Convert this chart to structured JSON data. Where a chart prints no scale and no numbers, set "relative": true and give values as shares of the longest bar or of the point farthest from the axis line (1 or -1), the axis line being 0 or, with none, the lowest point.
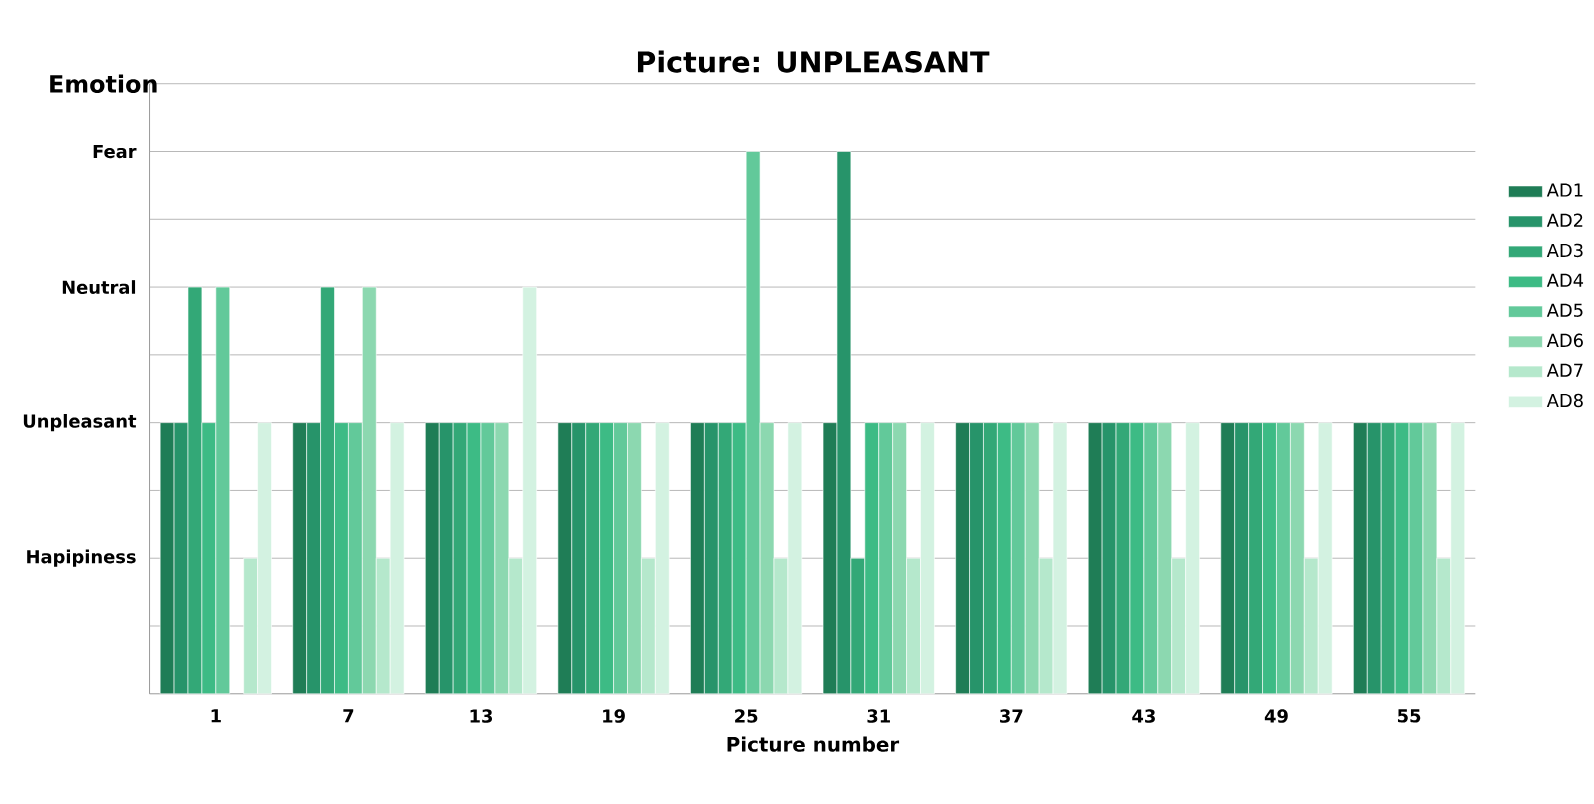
{
  "chart_data": {
    "type": "bar",
    "title": "Picture: UNPLEASANT",
    "xlabel": "Picture number",
    "ylabel": "Emotion",
    "relative": true,
    "categories": [
      "1",
      "7",
      "13",
      "19",
      "25",
      "31",
      "37",
      "43",
      "49",
      "55"
    ],
    "series": [
      {
        "name": "AD1",
        "color": "#1f7d56",
        "values": [
          0.5,
          0.5,
          0.5,
          0.5,
          0.5,
          0.5,
          0.5,
          0.5,
          0.5,
          0.5
        ]
      },
      {
        "name": "AD2",
        "color": "#27946a",
        "values": [
          0.5,
          0.5,
          0.5,
          0.5,
          0.5,
          1,
          0.5,
          0.5,
          0.5,
          0.5
        ]
      },
      {
        "name": "AD3",
        "color": "#33a877",
        "values": [
          0.75,
          0.75,
          0.5,
          0.5,
          0.5,
          0.25,
          0.5,
          0.5,
          0.5,
          0.5
        ]
      },
      {
        "name": "AD4",
        "color": "#3dbb85",
        "values": [
          0.5,
          0.5,
          0.5,
          0.5,
          0.5,
          0.5,
          0.5,
          0.5,
          0.5,
          0.5
        ]
      },
      {
        "name": "AD5",
        "color": "#62c99a",
        "values": [
          0.75,
          0.5,
          0.5,
          0.5,
          1,
          0.5,
          0.5,
          0.5,
          0.5,
          0.5
        ]
      },
      {
        "name": "AD6",
        "color": "#8cd8b0",
        "values": [
          null,
          0.75,
          0.5,
          0.5,
          0.5,
          0.5,
          0.5,
          0.5,
          0.5,
          0.5
        ]
      },
      {
        "name": "AD7",
        "color": "#b5e8cc",
        "values": [
          0.25,
          0.25,
          0.25,
          0.25,
          0.25,
          0.25,
          0.25,
          0.25,
          0.25,
          0.25
        ]
      },
      {
        "name": "AD8",
        "color": "#d3f2e1",
        "values": [
          0.5,
          0.5,
          0.75,
          0.5,
          0.5,
          0.5,
          0.5,
          0.5,
          0.5,
          0.5
        ]
      }
    ],
    "ref_lines": [
      {
        "axis": "y",
        "value": 0.125
      },
      {
        "axis": "y",
        "value": 0.25,
        "label": "Hapipiness"
      },
      {
        "axis": "y",
        "value": 0.375
      },
      {
        "axis": "y",
        "value": 0.5,
        "label": "Unpleasant"
      },
      {
        "axis": "y",
        "value": 0.625
      },
      {
        "axis": "y",
        "value": 0.75,
        "label": "Neutral"
      },
      {
        "axis": "y",
        "value": 0.875
      },
      {
        "axis": "y",
        "value": 1,
        "label": "Fear"
      },
      {
        "axis": "y",
        "value": 1.125
      }
    ],
    "legend": "right"
  }
}
